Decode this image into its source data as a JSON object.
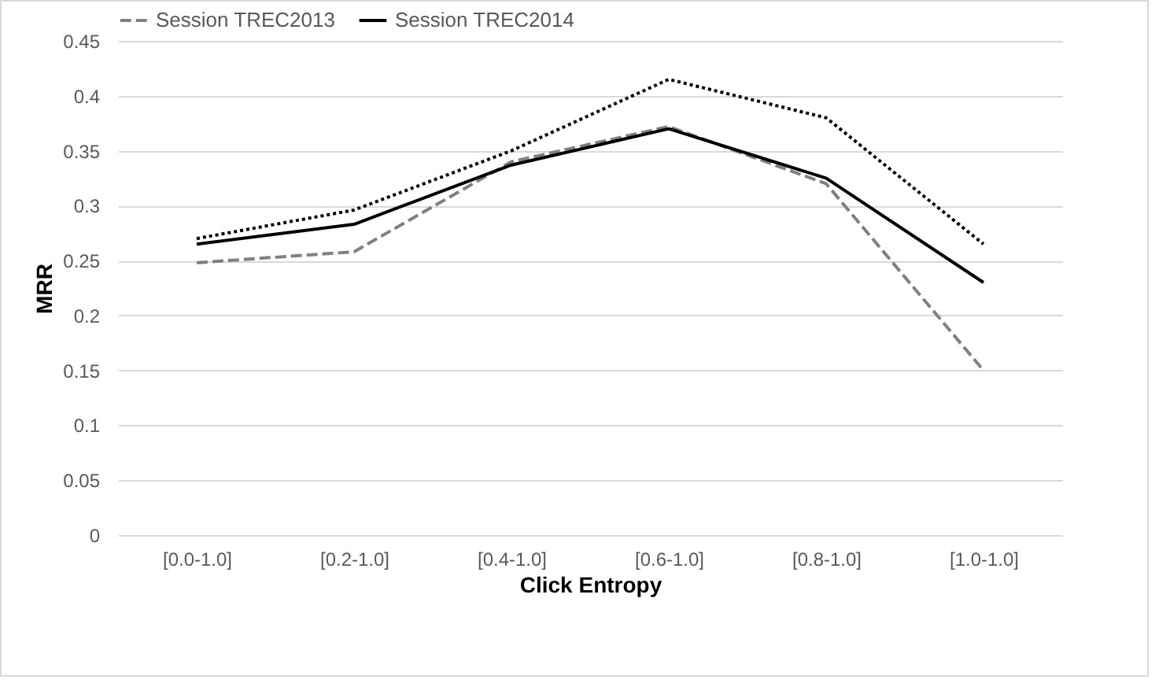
{
  "chart_data": {
    "type": "line",
    "xlabel": "Click Entropy",
    "ylabel": "MRR",
    "categories": [
      "[0.0-1.0]",
      "[0.2-1.0]",
      "[0.4-1.0]",
      "[0.6-1.0]",
      "[0.8-1.0]",
      "[1.0-1.0]"
    ],
    "series": [
      {
        "name": "Session TREC2013",
        "color": "#808080",
        "line_style": "dashed",
        "values": [
          0.248,
          0.258,
          0.34,
          0.372,
          0.32,
          0.15
        ]
      },
      {
        "name": "Session TREC2014",
        "color": "#000000",
        "line_style": "solid",
        "values": [
          0.265,
          0.283,
          0.337,
          0.37,
          0.325,
          0.23
        ]
      },
      {
        "color": "#000000",
        "line_style": "dotted",
        "values": [
          0.27,
          0.296,
          0.35,
          0.415,
          0.38,
          0.265
        ]
      }
    ],
    "ylim": [
      0,
      0.45
    ],
    "yticks": [
      0,
      0.05,
      0.1,
      0.15,
      0.2,
      0.25,
      0.3,
      0.35,
      0.4,
      0.45
    ],
    "grid": "y",
    "legend": "top",
    "marker": "none"
  }
}
